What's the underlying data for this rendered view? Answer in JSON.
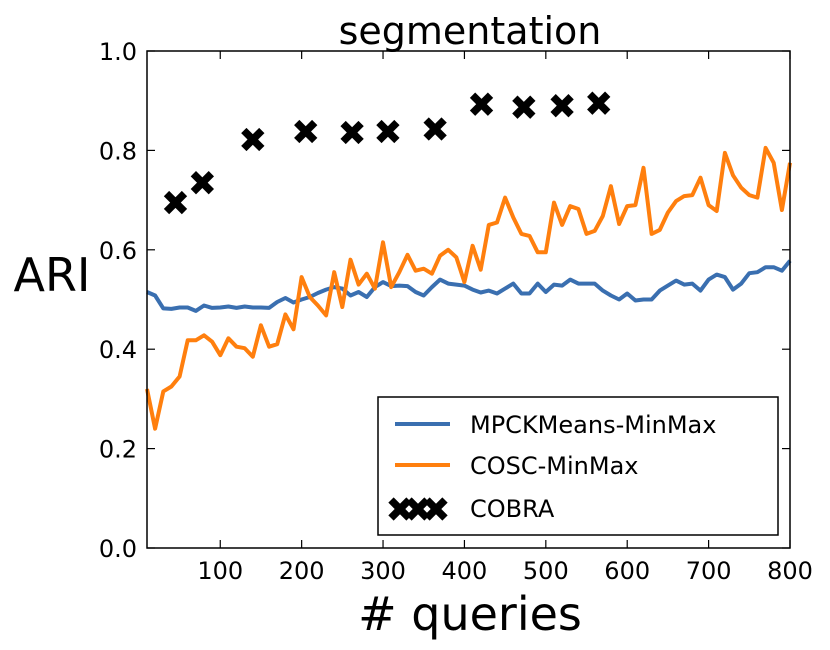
{
  "chart_data": {
    "type": "line",
    "title": "segmentation",
    "xlabel": "# queries",
    "ylabel": "ARI",
    "xlim": [
      10,
      800
    ],
    "ylim": [
      0.0,
      1.0
    ],
    "x_ticks": [
      100,
      200,
      300,
      400,
      500,
      600,
      700,
      800
    ],
    "x_tick_labels": [
      "100",
      "200",
      "300",
      "400",
      "500",
      "600",
      "700",
      "800"
    ],
    "y_ticks": [
      0.0,
      0.2,
      0.4,
      0.6,
      0.8,
      1.0
    ],
    "y_tick_labels": [
      "0.0",
      "0.2",
      "0.4",
      "0.6",
      "0.8",
      "1.0"
    ],
    "grid": false,
    "legend_position": "lower-right",
    "series": [
      {
        "name": "MPCKMeans-MinMax",
        "kind": "line",
        "color": "#3a6fb0",
        "x": [
          10,
          20,
          30,
          40,
          50,
          60,
          70,
          80,
          90,
          100,
          110,
          120,
          130,
          140,
          150,
          160,
          170,
          180,
          190,
          200,
          210,
          220,
          230,
          240,
          250,
          260,
          270,
          280,
          290,
          300,
          310,
          320,
          330,
          340,
          350,
          360,
          370,
          380,
          390,
          400,
          410,
          420,
          430,
          440,
          450,
          460,
          470,
          480,
          490,
          500,
          510,
          520,
          530,
          540,
          550,
          560,
          570,
          580,
          590,
          600,
          610,
          620,
          630,
          640,
          650,
          660,
          670,
          680,
          690,
          700,
          710,
          720,
          730,
          740,
          750,
          760,
          770,
          780,
          790,
          800
        ],
        "values": [
          0.515,
          0.508,
          0.482,
          0.481,
          0.484,
          0.484,
          0.477,
          0.488,
          0.483,
          0.484,
          0.486,
          0.483,
          0.486,
          0.484,
          0.484,
          0.483,
          0.495,
          0.503,
          0.494,
          0.5,
          0.505,
          0.513,
          0.52,
          0.525,
          0.522,
          0.508,
          0.515,
          0.505,
          0.525,
          0.535,
          0.527,
          0.528,
          0.527,
          0.515,
          0.508,
          0.525,
          0.54,
          0.532,
          0.53,
          0.528,
          0.52,
          0.514,
          0.518,
          0.512,
          0.522,
          0.532,
          0.512,
          0.512,
          0.532,
          0.515,
          0.53,
          0.528,
          0.54,
          0.532,
          0.532,
          0.532,
          0.518,
          0.508,
          0.5,
          0.512,
          0.498,
          0.5,
          0.5,
          0.518,
          0.528,
          0.538,
          0.53,
          0.532,
          0.518,
          0.54,
          0.55,
          0.545,
          0.52,
          0.532,
          0.553,
          0.555,
          0.565,
          0.565,
          0.558,
          0.578
        ]
      },
      {
        "name": "COSC-MinMax",
        "kind": "line",
        "color": "#ff7f0e",
        "x": [
          10,
          20,
          30,
          40,
          50,
          60,
          70,
          80,
          90,
          100,
          110,
          120,
          130,
          140,
          150,
          160,
          170,
          180,
          190,
          200,
          210,
          220,
          230,
          240,
          250,
          260,
          270,
          280,
          290,
          300,
          310,
          320,
          330,
          340,
          350,
          360,
          370,
          380,
          390,
          400,
          410,
          420,
          430,
          440,
          450,
          460,
          470,
          480,
          490,
          500,
          510,
          520,
          530,
          540,
          550,
          560,
          570,
          580,
          590,
          600,
          610,
          620,
          630,
          640,
          650,
          660,
          670,
          680,
          690,
          700,
          710,
          720,
          730,
          740,
          750,
          760,
          770,
          780,
          790,
          800
        ],
        "values": [
          0.32,
          0.24,
          0.315,
          0.325,
          0.345,
          0.418,
          0.418,
          0.428,
          0.415,
          0.388,
          0.422,
          0.405,
          0.402,
          0.385,
          0.448,
          0.405,
          0.41,
          0.47,
          0.44,
          0.545,
          0.505,
          0.488,
          0.468,
          0.555,
          0.485,
          0.58,
          0.53,
          0.552,
          0.522,
          0.615,
          0.525,
          0.555,
          0.59,
          0.558,
          0.562,
          0.552,
          0.588,
          0.6,
          0.585,
          0.535,
          0.608,
          0.56,
          0.65,
          0.655,
          0.705,
          0.665,
          0.632,
          0.628,
          0.595,
          0.595,
          0.695,
          0.65,
          0.688,
          0.682,
          0.632,
          0.638,
          0.668,
          0.728,
          0.652,
          0.688,
          0.69,
          0.765,
          0.632,
          0.64,
          0.675,
          0.698,
          0.708,
          0.71,
          0.745,
          0.69,
          0.678,
          0.795,
          0.75,
          0.725,
          0.71,
          0.705,
          0.805,
          0.775,
          0.68,
          0.775
        ]
      },
      {
        "name": "COBRA",
        "kind": "scatter",
        "marker": "X",
        "color": "#000000",
        "x": [
          45,
          78,
          140,
          205,
          262,
          306,
          364,
          421,
          473,
          520,
          565
        ],
        "values": [
          0.695,
          0.735,
          0.822,
          0.838,
          0.836,
          0.838,
          0.843,
          0.893,
          0.887,
          0.89,
          0.895
        ]
      }
    ]
  }
}
